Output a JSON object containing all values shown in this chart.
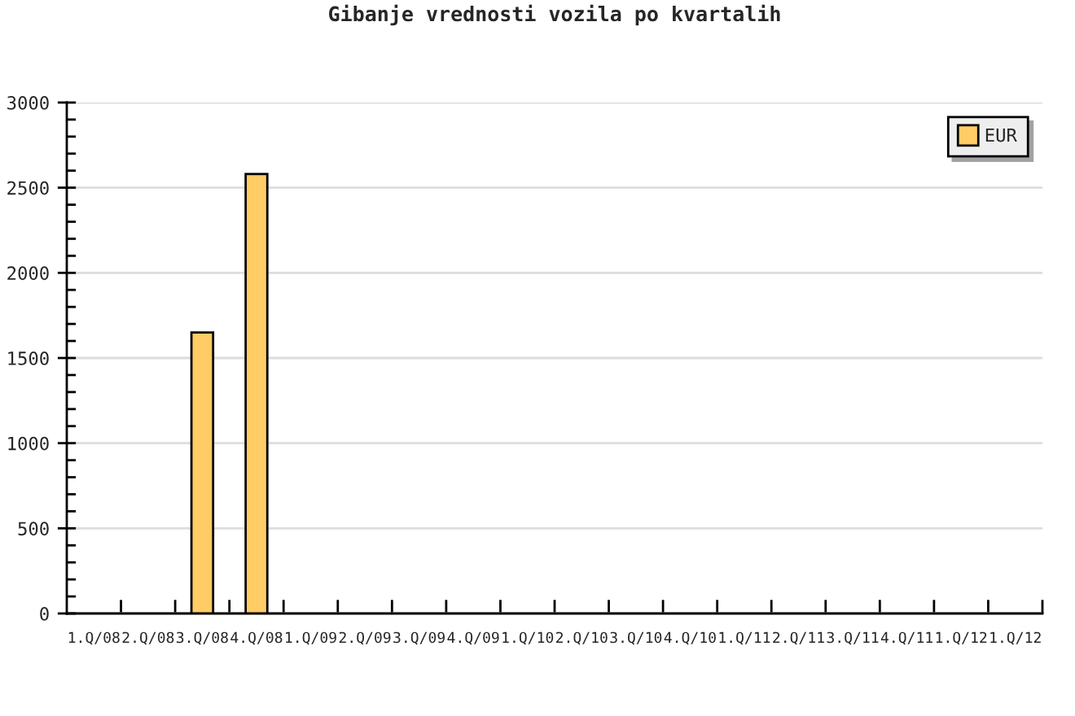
{
  "chart_data": {
    "type": "bar",
    "title": "Gibanje vrednosti vozila po kvartalih",
    "categories": [
      "1.Q/08",
      "2.Q/08",
      "3.Q/08",
      "4.Q/08",
      "1.Q/09",
      "2.Q/09",
      "3.Q/09",
      "4.Q/09",
      "1.Q/10",
      "2.Q/10",
      "3.Q/10",
      "4.Q/10",
      "1.Q/11",
      "2.Q/11",
      "3.Q/11",
      "4.Q/11",
      "1.Q/12",
      "1.Q/12"
    ],
    "series": [
      {
        "name": "EUR",
        "color": "#ffcc66",
        "values": [
          null,
          null,
          1650,
          2580,
          null,
          null,
          null,
          null,
          null,
          null,
          null,
          null,
          null,
          null,
          null,
          null,
          null,
          null
        ]
      }
    ],
    "ylim": [
      0,
      3000
    ],
    "yticks": [
      0,
      500,
      1000,
      1500,
      2000,
      2500,
      3000
    ],
    "grid": "y",
    "legend": "top right"
  }
}
